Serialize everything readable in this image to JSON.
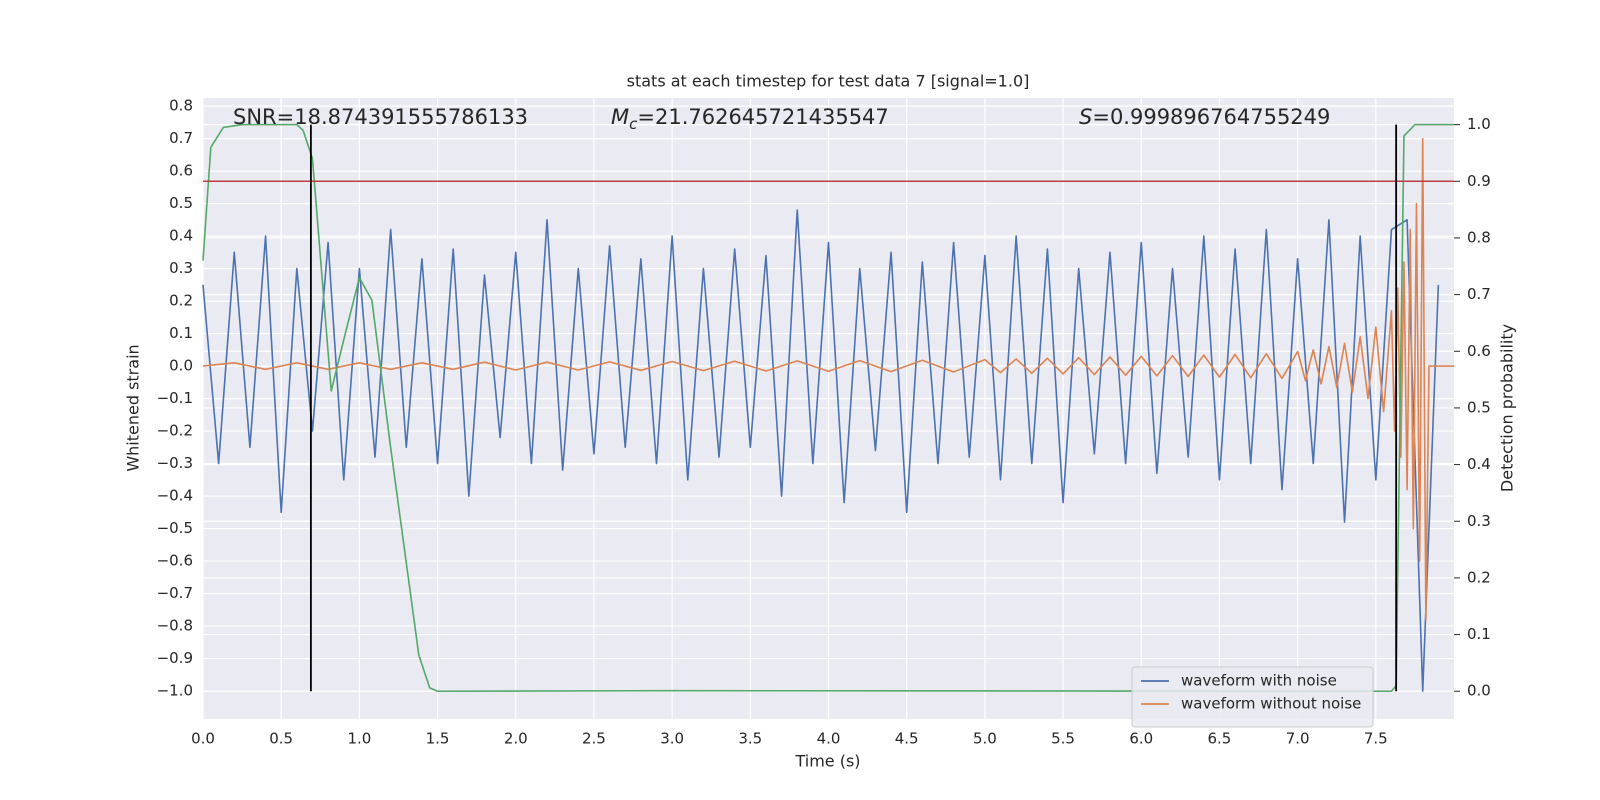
{
  "chart_data": {
    "type": "line",
    "title": "stats at each timestep for test data 7 [signal=1.0]",
    "xlabel": "Time (s)",
    "ylabel": "Whitened strain",
    "y2label": "Detection probability",
    "xlim": [
      0,
      8.0
    ],
    "ylim": [
      -1.086,
      0.825
    ],
    "y2lim": [
      -0.049,
      1.047
    ],
    "xticks": [
      {
        "value": 0,
        "label": "0.0"
      },
      {
        "value": 0.5,
        "label": "0.5"
      },
      {
        "value": 1,
        "label": "1.0"
      },
      {
        "value": 1.5,
        "label": "1.5"
      },
      {
        "value": 2,
        "label": "2.0"
      },
      {
        "value": 2.5,
        "label": "2.5"
      },
      {
        "value": 3,
        "label": "3.0"
      },
      {
        "value": 3.5,
        "label": "3.5"
      },
      {
        "value": 4,
        "label": "4.0"
      },
      {
        "value": 4.5,
        "label": "4.5"
      },
      {
        "value": 5,
        "label": "5.0"
      },
      {
        "value": 5.5,
        "label": "5.5"
      },
      {
        "value": 6,
        "label": "6.0"
      },
      {
        "value": 6.5,
        "label": "6.5"
      },
      {
        "value": 7,
        "label": "7.0"
      },
      {
        "value": 7.5,
        "label": "7.5"
      }
    ],
    "yticks": [
      {
        "value": -1,
        "label": "−1.0"
      },
      {
        "value": -0.9,
        "label": "−0.9"
      },
      {
        "value": -0.8,
        "label": "−0.8"
      },
      {
        "value": -0.7,
        "label": "−0.7"
      },
      {
        "value": -0.6,
        "label": "−0.6"
      },
      {
        "value": -0.5,
        "label": "−0.5"
      },
      {
        "value": -0.4,
        "label": "−0.4"
      },
      {
        "value": -0.3,
        "label": "−0.3"
      },
      {
        "value": -0.2,
        "label": "−0.2"
      },
      {
        "value": -0.1,
        "label": "−0.1"
      },
      {
        "value": 0,
        "label": "0.0"
      },
      0.1,
      0.2,
      0.3,
      0.4,
      0.5,
      0.6,
      0.7,
      0.8
    ],
    "y2ticks": [
      {
        "value": 0,
        "label": "0.0"
      },
      0.1,
      0.2,
      0.3,
      0.4,
      0.5,
      0.6,
      0.7,
      0.8,
      0.9,
      {
        "value": 1,
        "label": "1.0"
      }
    ],
    "grid": true,
    "legend": "lower right",
    "annotations": [
      {
        "text": "SNR=18.874391555786133"
      },
      {
        "symbol": "M",
        "subscript": "c",
        "text": "=21.762645721435547"
      },
      {
        "symbol": "S",
        "text": "=0.999896764755249"
      }
    ],
    "vlines": [
      0.69,
      7.63
    ],
    "vline_span": [
      0,
      1
    ],
    "vline_color": "#000000",
    "threshold": 0.9,
    "threshold_color": "#c03d3e",
    "series": [
      {
        "name": "waveform with noise",
        "color": "#4c72b0",
        "x": [
          0.0,
          0.1,
          0.2,
          0.3,
          0.4,
          0.5,
          0.6,
          0.7,
          0.8,
          0.9,
          1.0,
          1.1,
          1.2,
          1.3,
          1.4,
          1.5,
          1.6,
          1.7,
          1.8,
          1.9,
          2.0,
          2.1,
          2.2,
          2.3,
          2.4,
          2.5,
          2.6,
          2.7,
          2.8,
          2.9,
          3.0,
          3.1,
          3.2,
          3.3,
          3.4,
          3.5,
          3.6,
          3.7,
          3.8,
          3.9,
          4.0,
          4.1,
          4.2,
          4.3,
          4.4,
          4.5,
          4.6,
          4.7,
          4.8,
          4.9,
          5.0,
          5.1,
          5.2,
          5.3,
          5.4,
          5.5,
          5.6,
          5.7,
          5.8,
          5.9,
          6.0,
          6.1,
          6.2,
          6.3,
          6.4,
          6.5,
          6.6,
          6.7,
          6.8,
          6.9,
          7.0,
          7.1,
          7.2,
          7.3,
          7.4,
          7.5,
          7.6,
          7.7,
          7.8,
          7.9
        ],
        "values": [
          0.25,
          -0.3,
          0.35,
          -0.25,
          0.4,
          -0.45,
          0.3,
          -0.2,
          0.38,
          -0.35,
          0.3,
          -0.28,
          0.42,
          -0.25,
          0.33,
          -0.3,
          0.36,
          -0.4,
          0.28,
          -0.22,
          0.35,
          -0.3,
          0.45,
          -0.32,
          0.3,
          -0.27,
          0.37,
          -0.25,
          0.33,
          -0.3,
          0.4,
          -0.35,
          0.3,
          -0.28,
          0.36,
          -0.25,
          0.34,
          -0.4,
          0.48,
          -0.3,
          0.38,
          -0.42,
          0.3,
          -0.26,
          0.35,
          -0.45,
          0.32,
          -0.3,
          0.38,
          -0.28,
          0.34,
          -0.35,
          0.4,
          -0.3,
          0.36,
          -0.42,
          0.3,
          -0.27,
          0.35,
          -0.3,
          0.38,
          -0.33,
          0.3,
          -0.28,
          0.4,
          -0.35,
          0.36,
          -0.3,
          0.42,
          -0.38,
          0.33,
          -0.3,
          0.45,
          -0.48,
          0.4,
          -0.35,
          0.42,
          0.45,
          -1.0,
          0.25
        ]
      },
      {
        "name": "waveform without noise",
        "color": "#dd8452",
        "x": [
          0.0,
          0.2,
          0.4,
          0.6,
          0.8,
          1.0,
          1.2,
          1.4,
          1.6,
          1.8,
          2.0,
          2.2,
          2.4,
          2.6,
          2.8,
          3.0,
          3.2,
          3.4,
          3.6,
          3.8,
          4.0,
          4.2,
          4.4,
          4.6,
          4.8,
          5.0,
          5.1,
          5.2,
          5.3,
          5.4,
          5.5,
          5.6,
          5.7,
          5.8,
          5.9,
          6.0,
          6.1,
          6.2,
          6.3,
          6.4,
          6.5,
          6.6,
          6.7,
          6.8,
          6.9,
          7.0,
          7.05,
          7.1,
          7.15,
          7.2,
          7.25,
          7.3,
          7.35,
          7.4,
          7.45,
          7.5,
          7.55,
          7.6,
          7.62,
          7.64,
          7.66,
          7.68,
          7.7,
          7.72,
          7.74,
          7.76,
          7.78,
          7.8,
          7.82,
          7.84,
          8.0
        ],
        "values": [
          0,
          0.01,
          -0.01,
          0.01,
          -0.01,
          0.01,
          -0.01,
          0.01,
          -0.01,
          0.012,
          -0.012,
          0.012,
          -0.012,
          0.013,
          -0.013,
          0.014,
          -0.014,
          0.015,
          -0.015,
          0.016,
          -0.016,
          0.017,
          -0.017,
          0.018,
          -0.018,
          0.02,
          -0.02,
          0.022,
          -0.022,
          0.024,
          -0.024,
          0.026,
          -0.026,
          0.028,
          -0.028,
          0.03,
          -0.03,
          0.032,
          -0.032,
          0.034,
          -0.034,
          0.036,
          -0.036,
          0.038,
          -0.038,
          0.045,
          -0.045,
          0.05,
          -0.055,
          0.06,
          -0.065,
          0.07,
          -0.08,
          0.09,
          -0.1,
          0.12,
          -0.14,
          0.17,
          -0.2,
          0.24,
          -0.28,
          0.32,
          -0.38,
          0.42,
          -0.5,
          0.5,
          -0.6,
          0.7,
          -0.78,
          0.0,
          0.0
        ]
      },
      {
        "color": "#55a868",
        "axis": "y2",
        "x": [
          0.0,
          0.05,
          0.13,
          0.25,
          0.6,
          0.64,
          0.7,
          0.82,
          0.9,
          1.0,
          1.08,
          1.2,
          1.38,
          1.45,
          1.5,
          3.0,
          7.6,
          7.63,
          7.68,
          7.75,
          8.0
        ],
        "values": [
          0.76,
          0.96,
          0.995,
          1.0,
          1.0,
          0.99,
          0.94,
          0.53,
          0.62,
          0.73,
          0.69,
          0.43,
          0.064,
          0.006,
          0.0,
          0.001,
          0.0,
          0.01,
          0.98,
          1.0,
          1.0
        ]
      }
    ]
  }
}
